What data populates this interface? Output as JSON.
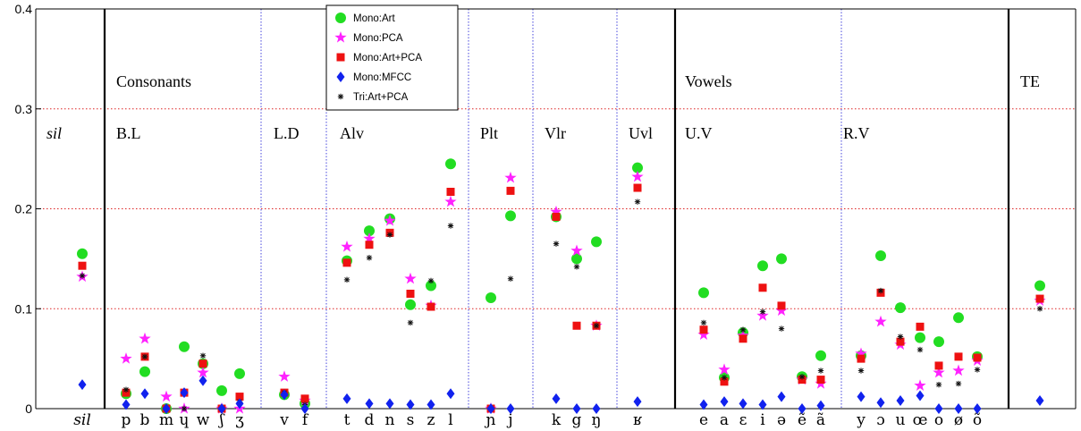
{
  "chart_data": {
    "type": "scatter",
    "title": "",
    "xlabel": "",
    "ylabel": "",
    "ylim": [
      0,
      0.4
    ],
    "yticks": [
      "0",
      "0.1",
      "0.2",
      "0.3",
      "0.4"
    ],
    "categories": [
      "sil",
      "p",
      "b",
      "m",
      "ɥ",
      "w",
      "ʃ",
      "ʒ",
      "v",
      "f",
      "t",
      "d",
      "n",
      "s",
      "z",
      "l",
      "ɲ",
      "j",
      "k",
      "g",
      "ŋ",
      "ʁ",
      "e",
      "a",
      "ɛ",
      "i",
      "ə",
      "ẽ",
      "ã",
      "y",
      "ɔ",
      "u",
      "œ",
      "o",
      "ø",
      "õ",
      "TE"
    ],
    "tick_labels": [
      "sil",
      "p",
      "b",
      "m",
      "ɥ",
      "w",
      "ʃ",
      "ʒ",
      "v",
      "f",
      "t",
      "d",
      "n",
      "s",
      "z",
      "l",
      "ɲ",
      "j",
      "k",
      "g",
      "ŋ",
      "ʁ",
      "e",
      "a",
      "ɛ",
      "i",
      "ə",
      "ẽ",
      "ã",
      "y",
      "ɔ",
      "u",
      "œ",
      "o",
      "ø",
      "õ",
      ""
    ],
    "region_labels": [
      {
        "name": "sil",
        "group": null
      },
      {
        "name": "B.L",
        "group": "Consonants"
      },
      {
        "name": "L.D",
        "group": null
      },
      {
        "name": "Alv",
        "group": null
      },
      {
        "name": "Plt",
        "group": null
      },
      {
        "name": "Vlr",
        "group": null
      },
      {
        "name": "Uvl",
        "group": null
      },
      {
        "name": "U.V",
        "group": "Vowels"
      },
      {
        "name": "R.V",
        "group": null
      },
      {
        "name": "",
        "group": "TE"
      }
    ],
    "legend_position": "top-center",
    "series": [
      {
        "name": "Mono:Art",
        "color": "#22dd22",
        "marker": "circle",
        "values": [
          0.155,
          0.015,
          0.037,
          0.0,
          0.062,
          0.045,
          0.018,
          0.035,
          0.014,
          0.005,
          0.148,
          0.178,
          0.19,
          0.104,
          0.123,
          0.245,
          0.111,
          0.193,
          0.192,
          0.15,
          0.167,
          0.241,
          0.116,
          0.031,
          0.076,
          0.143,
          0.15,
          0.032,
          0.053,
          0.053,
          0.153,
          0.101,
          0.071,
          0.067,
          0.091,
          0.052,
          0.123
        ]
      },
      {
        "name": "Mono:PCA",
        "color": "#ff22ff",
        "marker": "star",
        "values": [
          0.132,
          0.05,
          0.07,
          0.012,
          0.0,
          0.036,
          0.0,
          0.0,
          0.032,
          0.008,
          0.162,
          0.17,
          0.188,
          0.13,
          0.103,
          0.207,
          0.0,
          0.231,
          0.197,
          0.158,
          0.083,
          0.232,
          0.074,
          0.039,
          0.073,
          0.093,
          0.098,
          0.029,
          0.025,
          0.055,
          0.087,
          0.064,
          0.023,
          0.036,
          0.038,
          0.048,
          0.108
        ]
      },
      {
        "name": "Mono:Art+PCA",
        "color": "#ee1111",
        "marker": "square",
        "values": [
          0.143,
          0.016,
          0.052,
          0.0,
          0.016,
          0.045,
          0.0,
          0.012,
          0.016,
          0.01,
          0.146,
          0.164,
          0.176,
          0.115,
          0.102,
          0.217,
          0.0,
          0.218,
          0.192,
          0.083,
          0.083,
          0.221,
          0.079,
          0.027,
          0.07,
          0.121,
          0.103,
          0.029,
          0.029,
          0.05,
          0.116,
          0.067,
          0.082,
          0.043,
          0.052,
          0.051,
          0.11
        ]
      },
      {
        "name": "Mono:MFCC",
        "color": "#1122ee",
        "marker": "diamond",
        "values": [
          0.024,
          0.004,
          0.015,
          0.0,
          0.016,
          0.028,
          0.0,
          0.005,
          0.014,
          0.0,
          0.01,
          0.005,
          0.005,
          0.004,
          0.004,
          0.015,
          0.0,
          0.0,
          0.01,
          0.0,
          0.0,
          0.007,
          0.004,
          0.007,
          0.005,
          0.004,
          0.012,
          0.0,
          0.003,
          0.012,
          0.006,
          0.008,
          0.013,
          0.0,
          0.0,
          0.0,
          0.008
        ]
      },
      {
        "name": "Tri:Art+PCA",
        "color": "#111111",
        "marker": "asterisk",
        "values": [
          0.133,
          0.019,
          0.052,
          0.0,
          0.0,
          0.053,
          0.0,
          0.007,
          0.016,
          0.004,
          0.129,
          0.151,
          0.174,
          0.086,
          0.128,
          0.183,
          0.0,
          0.13,
          0.165,
          0.142,
          0.083,
          0.207,
          0.086,
          0.031,
          0.079,
          0.097,
          0.08,
          0.032,
          0.038,
          0.038,
          0.118,
          0.072,
          0.059,
          0.024,
          0.025,
          0.039,
          0.1
        ]
      }
    ]
  }
}
